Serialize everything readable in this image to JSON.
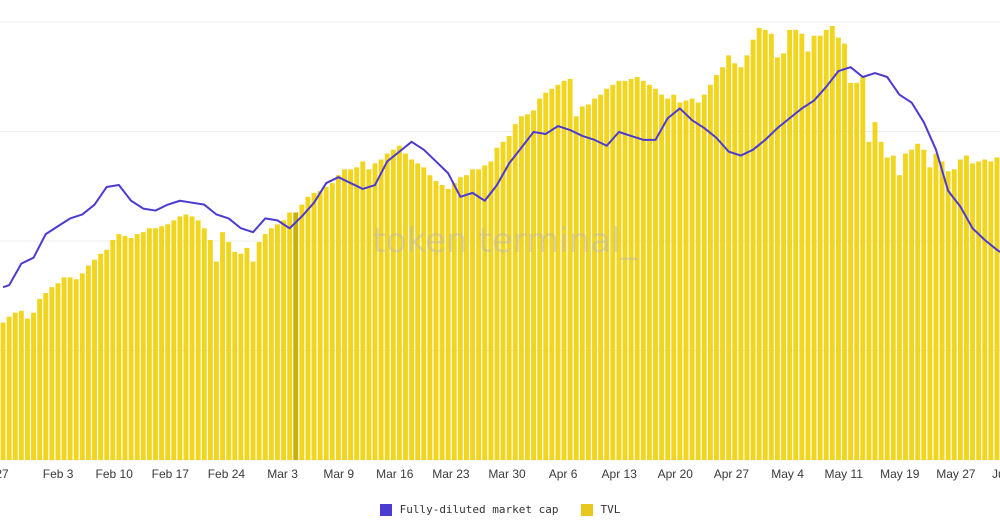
{
  "watermark": "token terminal_",
  "colors": {
    "tvl": "#f2d51f",
    "tvl_highlight": "#c9b00a",
    "fdmc": "#4b3bd0",
    "grid": "#ececec"
  },
  "chart_data": {
    "type": "bar",
    "grid": true,
    "ylim": [
      0,
      22.3
    ],
    "x_ticks": [
      "27",
      "Feb 3",
      "Feb 10",
      "Feb 17",
      "Feb 24",
      "Mar 3",
      "Mar 9",
      "Mar 16",
      "Mar 23",
      "Mar 30",
      "Apr 6",
      "Apr 13",
      "Apr 20",
      "Apr 27",
      "May 4",
      "May 11",
      "May 19",
      "May 27",
      "Jun"
    ],
    "highlight_index": 48,
    "series": [
      {
        "name": "TVL",
        "kind": "bar",
        "values": [
          7,
          7.3,
          7.5,
          7.6,
          7.2,
          7.5,
          8.2,
          8.5,
          8.8,
          9,
          9.3,
          9.3,
          9.2,
          9.5,
          9.9,
          10.2,
          10.5,
          10.7,
          11.2,
          11.5,
          11.4,
          11.3,
          11.5,
          11.6,
          11.8,
          11.8,
          11.9,
          12,
          12.2,
          12.4,
          12.5,
          12.4,
          12.2,
          11.8,
          11.2,
          10.1,
          11.6,
          11.1,
          10.6,
          10.5,
          10.8,
          10.1,
          11.1,
          11.5,
          11.8,
          12,
          12.2,
          12.6,
          12.6,
          13,
          13.4,
          13.6,
          13.7,
          13.9,
          14.1,
          14.5,
          14.8,
          14.8,
          14.9,
          15.2,
          14.8,
          15.1,
          15.3,
          15.6,
          15.8,
          16,
          15.6,
          15.3,
          15.1,
          14.9,
          14.5,
          14.2,
          14,
          13.8,
          14.1,
          14.4,
          14.5,
          14.8,
          14.8,
          15,
          15.2,
          15.9,
          16.2,
          16.5,
          17.1,
          17.5,
          17.6,
          17.8,
          18.4,
          18.7,
          18.9,
          19.1,
          19.3,
          19.4,
          17.5,
          18,
          18.1,
          18.4,
          18.6,
          18.9,
          19.1,
          19.3,
          19.3,
          19.4,
          19.5,
          19.3,
          19.1,
          18.9,
          18.6,
          18.4,
          18.6,
          18.2,
          18.3,
          18.4,
          18.2,
          18.6,
          19.1,
          19.6,
          20,
          20.6,
          20.2,
          20,
          20.6,
          21.4,
          22,
          21.9,
          21.7,
          20.5,
          20.7,
          21.9,
          21.9,
          21.7,
          20.8,
          21.6,
          21.6,
          21.9,
          22.1,
          21.5,
          21.2,
          19.2,
          19.2,
          19.5,
          16.2,
          17.2,
          16.2,
          15.4,
          15.5,
          14.5,
          15.6,
          15.8,
          16.1,
          15.8,
          14.9,
          15.6,
          15.2,
          14.7,
          14.8,
          15.3,
          15.5,
          15.1,
          15.2,
          15.3,
          15.2,
          15.4
        ]
      },
      {
        "name": "Fully-diluted market cap",
        "kind": "line",
        "x": [
          0,
          1,
          3,
          5,
          7,
          9,
          11,
          13,
          15,
          17,
          19,
          21,
          23,
          25,
          27,
          29,
          31,
          33,
          35,
          37,
          39,
          41,
          43,
          45,
          47,
          49,
          51,
          53,
          55,
          57,
          59,
          61,
          63,
          65,
          67,
          69,
          71,
          73,
          75,
          77,
          79,
          81,
          83,
          85,
          87,
          89,
          91,
          93,
          95,
          97,
          99,
          101,
          103,
          105,
          107,
          109,
          111,
          113,
          115,
          117,
          119,
          121,
          123,
          125,
          127,
          129,
          131,
          133,
          135,
          137,
          139,
          141,
          143,
          145,
          147,
          149,
          151,
          153,
          155,
          157,
          159,
          161,
          163,
          165,
          167,
          169,
          171
        ],
        "y": [
          8.8,
          8.9,
          10,
          10.3,
          11.5,
          11.9,
          12.3,
          12.5,
          13,
          13.9,
          14,
          13.2,
          12.8,
          12.7,
          13,
          13.2,
          13.1,
          13,
          12.5,
          12.3,
          11.8,
          11.6,
          12.3,
          12.2,
          11.8,
          12.4,
          13.1,
          14.1,
          14.4,
          14.1,
          13.8,
          14,
          15.2,
          15.7,
          16.2,
          15.8,
          15.2,
          14.6,
          13.4,
          13.6,
          13.2,
          14,
          15.1,
          15.9,
          16.7,
          16.6,
          17,
          16.8,
          16.5,
          16.3,
          16,
          16.7,
          16.5,
          16.3,
          16.3,
          17.4,
          17.9,
          17.3,
          16.9,
          16.4,
          15.7,
          15.5,
          15.8,
          16.3,
          16.9,
          17.4,
          17.9,
          18.3,
          19,
          19.8,
          20,
          19.5,
          19.7,
          19.5,
          18.6,
          18.2,
          17.2,
          15.8,
          13.7,
          12.9,
          11.8,
          11.2,
          10.7,
          10.3,
          10.1,
          10.4,
          10.7
        ]
      }
    ]
  },
  "legend": [
    {
      "label": "Fully-diluted market cap",
      "color": "#4b3bd0"
    },
    {
      "label": "TVL",
      "color": "#e6c81e"
    }
  ]
}
